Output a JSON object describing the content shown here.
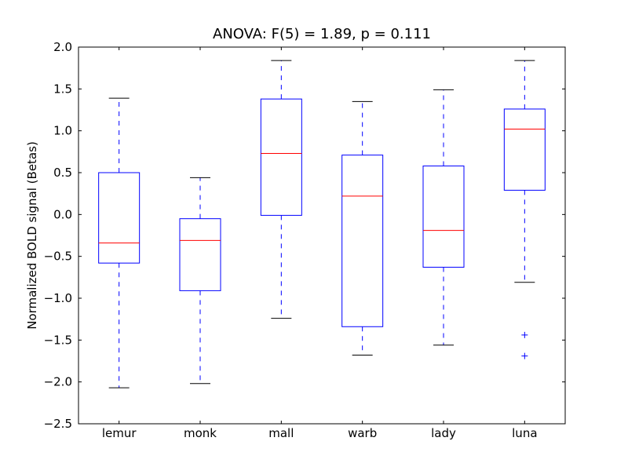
{
  "chart_data": {
    "type": "boxplot",
    "title": "ANOVA: F(5) = 1.89, p = 0.111",
    "xlabel": "",
    "ylabel": "Normalized BOLD signal (Betas)",
    "ylim": [
      -2.5,
      2.0
    ],
    "yticks": [
      "2.0",
      "1.5",
      "1.0",
      "0.5",
      "0.0",
      "−0.5",
      "−1.0",
      "−1.5",
      "−2.0",
      "−2.5"
    ],
    "ytick_values": [
      2.0,
      1.5,
      1.0,
      0.5,
      0.0,
      -0.5,
      -1.0,
      -1.5,
      -2.0,
      -2.5
    ],
    "grid": false,
    "categories": [
      "lemur",
      "monk",
      "mall",
      "warb",
      "lady",
      "luna"
    ],
    "boxes": [
      {
        "whisker_low": -2.07,
        "q1": -0.58,
        "median": -0.34,
        "q3": 0.5,
        "whisker_high": 1.39,
        "outliers": []
      },
      {
        "whisker_low": -2.02,
        "q1": -0.91,
        "median": -0.31,
        "q3": -0.05,
        "whisker_high": 0.44,
        "outliers": []
      },
      {
        "whisker_low": -1.24,
        "q1": -0.01,
        "median": 0.73,
        "q3": 1.38,
        "whisker_high": 1.84,
        "outliers": []
      },
      {
        "whisker_low": -1.68,
        "q1": -1.34,
        "median": 0.22,
        "q3": 0.71,
        "whisker_high": 1.35,
        "outliers": []
      },
      {
        "whisker_low": -1.56,
        "q1": -0.63,
        "median": -0.19,
        "q3": 0.58,
        "whisker_high": 1.49,
        "outliers": []
      },
      {
        "whisker_low": -0.81,
        "q1": 0.29,
        "median": 1.02,
        "q3": 1.26,
        "whisker_high": 1.84,
        "outliers": [
          -1.44,
          -1.69
        ]
      }
    ],
    "colors": {
      "box": "#0000ff",
      "median": "#ff0000",
      "caps": "#000000",
      "outlier": "#0000ff"
    }
  }
}
